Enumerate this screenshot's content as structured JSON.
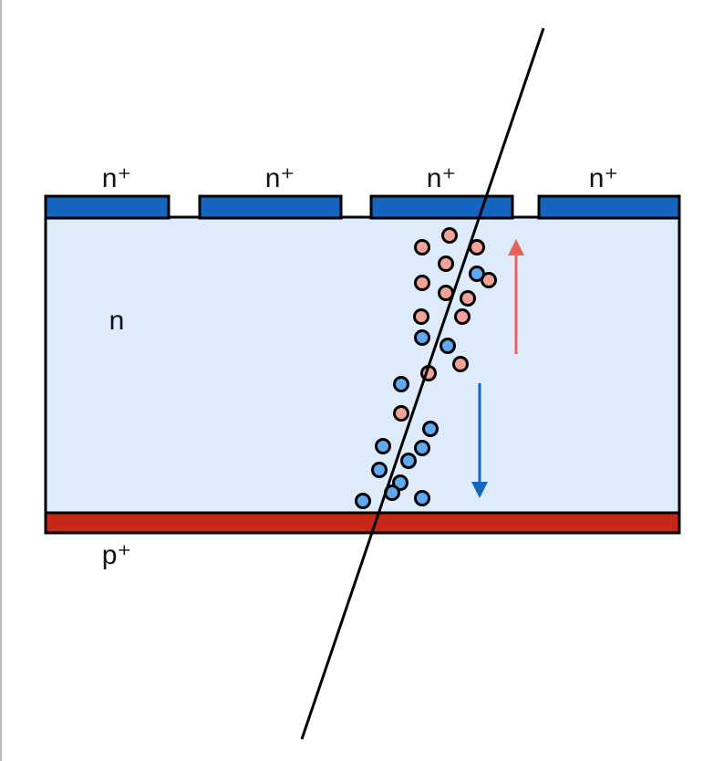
{
  "labels": {
    "strip_1": "n⁺",
    "strip_2": "n⁺",
    "strip_3": "n⁺",
    "strip_4": "n⁺",
    "bulk": "n",
    "backside": "p⁺"
  },
  "colors": {
    "background": "#ffffff",
    "bulk_fill": "#ddebfa",
    "n_plus_strip": "#1565c0",
    "p_plus_layer": "#c62818",
    "outline": "#000000",
    "hole": "#f3a29a",
    "hole_arrow": "#e8625c",
    "electron": "#5ea9ef",
    "electron_arrow": "#1565c0",
    "track": "#000000"
  },
  "particles": {
    "holes_count": 13,
    "electrons_count": 13
  },
  "icons": {
    "hole_drift_arrow": "arrow-up-icon",
    "electron_drift_arrow": "arrow-down-icon"
  }
}
